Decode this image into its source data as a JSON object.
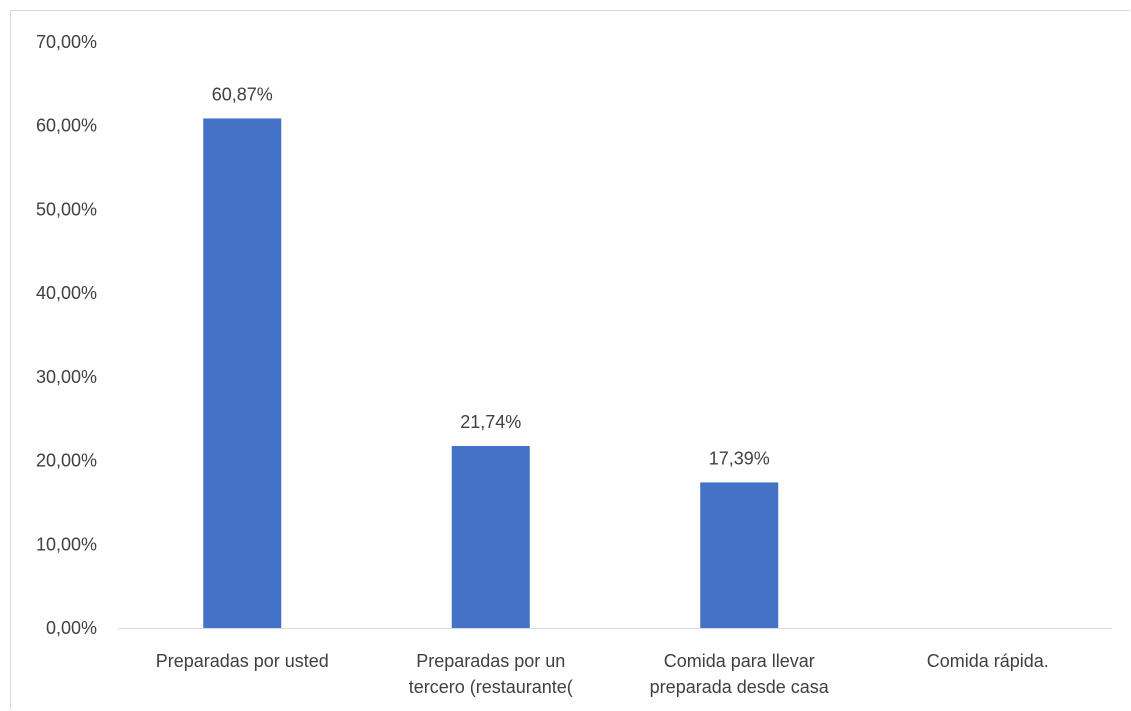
{
  "chart_data": {
    "type": "bar",
    "categories": [
      [
        "Preparadas por usted"
      ],
      [
        "Preparadas por un",
        "tercero (restaurante("
      ],
      [
        "Comida para llevar",
        "preparada desde casa"
      ],
      [
        "Comida rápida."
      ]
    ],
    "values": [
      60.87,
      21.74,
      17.39,
      0
    ],
    "data_labels": [
      "60,87%",
      "21,74%",
      "17,39%",
      ""
    ],
    "y_ticks": [
      "0,00%",
      "10,00%",
      "20,00%",
      "30,00%",
      "40,00%",
      "50,00%",
      "60,00%",
      "70,00%"
    ],
    "ylim": [
      0,
      70
    ],
    "grid": false,
    "legend": "none",
    "bar_color": "#4472C4",
    "axis_color": "#d9d9d9",
    "text_color": "#404040"
  }
}
